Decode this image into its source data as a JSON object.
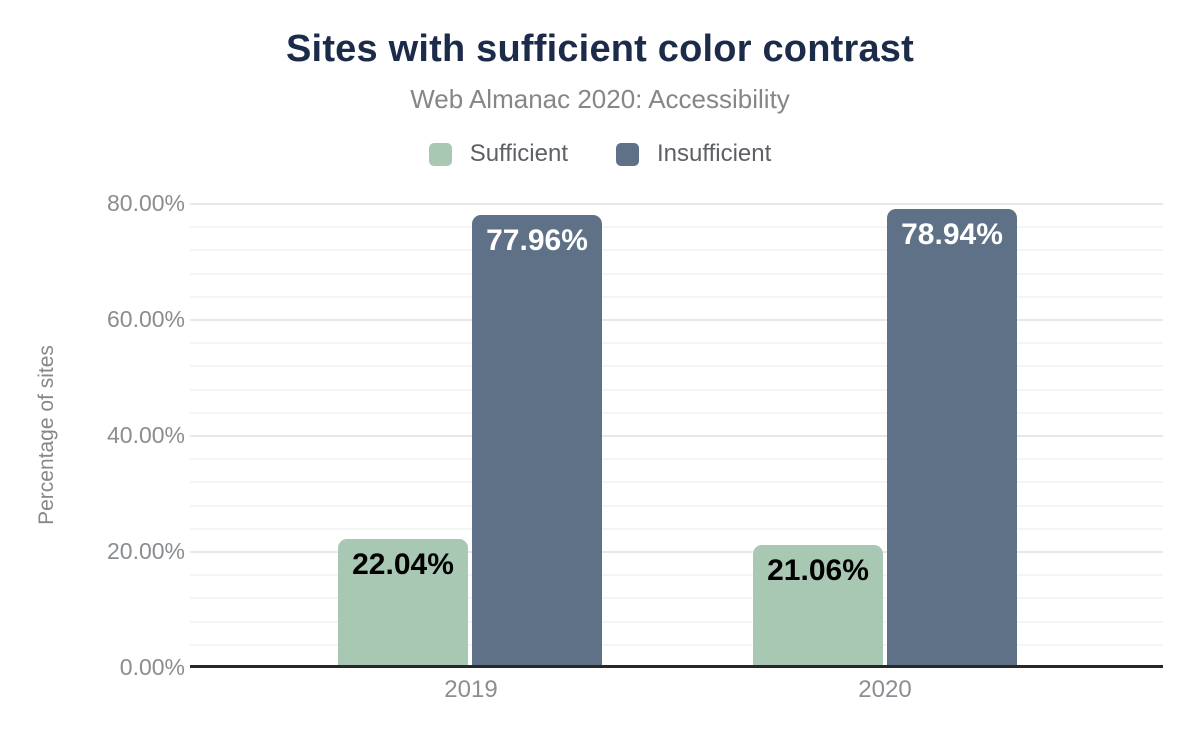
{
  "header": {
    "title": "Sites with sufficient color contrast",
    "subtitle": "Web Almanac 2020: Accessibility"
  },
  "legend": {
    "items": [
      {
        "label": "Sufficient",
        "color": "#a8c8b4"
      },
      {
        "label": "Insufficient",
        "color": "#5e7186"
      }
    ]
  },
  "axes": {
    "y_title": "Percentage of sites",
    "y_ticks": [
      "0.00%",
      "20.00%",
      "40.00%",
      "60.00%",
      "80.00%"
    ],
    "x_labels": [
      "2019",
      "2020"
    ]
  },
  "chart_data": {
    "type": "bar",
    "title": "Sites with sufficient color contrast",
    "subtitle": "Web Almanac 2020: Accessibility",
    "categories": [
      "2019",
      "2020"
    ],
    "series": [
      {
        "name": "Sufficient",
        "color": "#a8c8b4",
        "label_color": "#000000",
        "values": [
          22.04,
          21.06
        ],
        "labels": [
          "22.04%",
          "21.06%"
        ]
      },
      {
        "name": "Insufficient",
        "color": "#5e7186",
        "label_color": "#ffffff",
        "values": [
          77.96,
          78.94
        ],
        "labels": [
          "77.96%",
          "78.94%"
        ]
      }
    ],
    "xlabel": "",
    "ylabel": "Percentage of sites",
    "ylim": [
      0,
      80
    ],
    "y_tick_step": 20,
    "minor_grid_step": 4,
    "grid": true,
    "legend_position": "top"
  },
  "colors": {
    "title": "#1c2b4a",
    "subtitle": "#868686",
    "tick_label": "#8a8d90",
    "legend_label": "#5d6064",
    "axis_line": "#282828",
    "major_grid": "#e8e8e8",
    "minor_grid": "#f5f5f5",
    "background": "#ffffff"
  }
}
